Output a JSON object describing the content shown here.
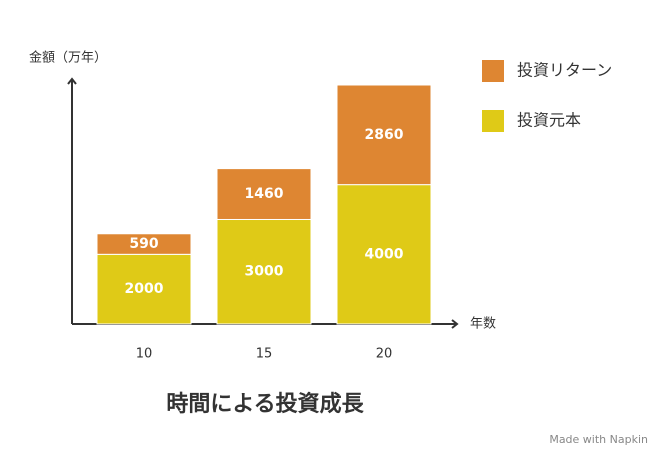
{
  "chart_data": {
    "type": "stacked_bar",
    "title": "時間による投資成長",
    "y_label": "金額（万年）",
    "x_label": "年数",
    "categories": [
      "10",
      "15",
      "20"
    ],
    "series": [
      {
        "name": "投資元本",
        "color": "#dfca17",
        "values": [
          2000,
          3000,
          4000
        ]
      },
      {
        "name": "投資リターン",
        "color": "#de8632",
        "values": [
          590,
          1460,
          2860
        ]
      }
    ],
    "footer": "Made with Napkin"
  }
}
